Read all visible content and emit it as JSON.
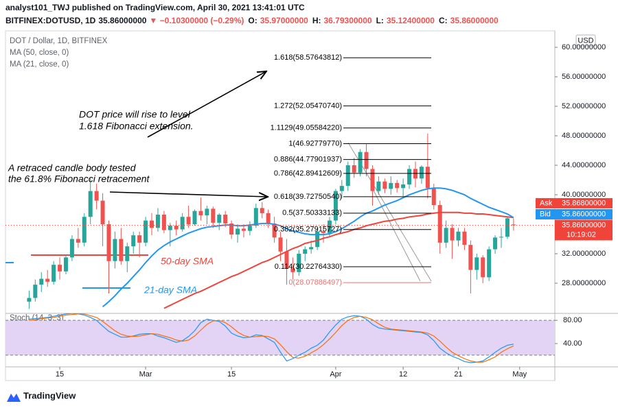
{
  "header": {
    "title": "analyst101_TWJ published on TradingView.com, April 30, 2021 13:41:01 UTC",
    "quote": [
      {
        "text": "BITFINEX:DOTUSD, 1D",
        "color": "#131722"
      },
      {
        "text": "35.86000000",
        "color": "#131722"
      },
      {
        "text": "▼ −0.10300000 (−0.29%)",
        "color": "#ef5350"
      },
      {
        "text": "O:",
        "color": "#131722"
      },
      {
        "text": "35.97000000",
        "color": "#ef5350"
      },
      {
        "text": "H:",
        "color": "#131722"
      },
      {
        "text": "36.79300000",
        "color": "#ef5350"
      },
      {
        "text": "L:",
        "color": "#131722"
      },
      {
        "text": "35.12400000",
        "color": "#ef5350"
      },
      {
        "text": "C:",
        "color": "#131722"
      },
      {
        "text": "35.86000000",
        "color": "#ef5350"
      }
    ]
  },
  "footer": "TradingView",
  "chart_data": [
    {
      "type": "candlestick",
      "title": "DOT / Dollar, 1D, BITFINEX",
      "axis_unit": "USD",
      "up_color": "#26a69a",
      "down_color": "#ef5350",
      "categories": [
        null,
        null,
        null,
        null,
        null,
        "15",
        null,
        null,
        null,
        null,
        null,
        null,
        null,
        null,
        null,
        null,
        null,
        null,
        null,
        "Mar",
        null,
        null,
        null,
        null,
        null,
        null,
        null,
        null,
        null,
        null,
        null,
        null,
        null,
        "15",
        null,
        null,
        null,
        null,
        null,
        null,
        null,
        null,
        null,
        null,
        null,
        null,
        null,
        null,
        null,
        null,
        "Apr",
        null,
        null,
        null,
        null,
        null,
        null,
        null,
        null,
        null,
        null,
        "12",
        null,
        null,
        null,
        null,
        null,
        null,
        null,
        null,
        "21",
        null,
        null,
        null,
        null,
        null,
        null,
        null,
        null,
        null,
        "May"
      ],
      "open": [
        25.5,
        26,
        27.8,
        28.6,
        28.2,
        30.5,
        29.6,
        31.5,
        34,
        33.5,
        37,
        40.5,
        39.2,
        36,
        31,
        34,
        31,
        33,
        34.5,
        33.5,
        36.5,
        35.5,
        37.3,
        35.2,
        35.8,
        35.3,
        37,
        36,
        37.8,
        37.2,
        38.1,
        36.2,
        37.3,
        36.1,
        34.6,
        35.4,
        35.1,
        35.8,
        38.2,
        37.5,
        36.1,
        34.2,
        32.3,
        30,
        29.5,
        32,
        32.6,
        32.9,
        35,
        34.8,
        36.5,
        40.5,
        41.2,
        44,
        43,
        45.8,
        43.5,
        40.5,
        41.8,
        40.8,
        41.6,
        40.9,
        41.4,
        43.5,
        42.2,
        43.8,
        40.9,
        38.6,
        33.5,
        35.5,
        33.8,
        35,
        33.2,
        29.8,
        31.5,
        28.8,
        32.6,
        34.2,
        34.3,
        35.97,
        null
      ],
      "high": [
        27,
        28.5,
        29.5,
        29.8,
        31,
        31.5,
        31.8,
        34.5,
        35.5,
        37.5,
        42.3,
        41.5,
        40.2,
        36.5,
        35,
        35.5,
        33.5,
        35,
        35,
        37,
        37.5,
        38.2,
        37.8,
        36.2,
        36.5,
        37.5,
        38.5,
        38,
        39.6,
        38.5,
        38.4,
        37.5,
        37.8,
        36.5,
        36,
        36,
        36.4,
        38.8,
        39,
        38,
        37,
        35,
        34,
        31.5,
        32.5,
        33,
        33.8,
        35.5,
        36,
        37,
        40.8,
        42,
        44.5,
        45,
        46.2,
        46.9,
        44,
        42.5,
        42.2,
        42.5,
        42,
        42.2,
        44,
        44.5,
        44,
        48.3,
        41.5,
        39.2,
        36.5,
        36,
        35.5,
        35.5,
        33.8,
        32,
        31.8,
        33,
        34.5,
        35.5,
        37,
        36.793,
        null
      ],
      "low": [
        24.5,
        25.5,
        26.8,
        27.5,
        27.8,
        28.5,
        29.2,
        31,
        32.8,
        33,
        36,
        38,
        33,
        26.6,
        30,
        30.5,
        29.5,
        32,
        31.5,
        33,
        34.5,
        35,
        34.8,
        33,
        34.5,
        35,
        35.5,
        35.8,
        36.5,
        36,
        35.5,
        35.2,
        35.6,
        34,
        33.5,
        34.2,
        34.5,
        35.5,
        36.8,
        35.5,
        33.5,
        31,
        27.8,
        28.5,
        29,
        31,
        32,
        32.5,
        33.5,
        34.2,
        36,
        39.5,
        40.5,
        42.3,
        42.5,
        42.5,
        38.5,
        40,
        40.2,
        40,
        40.3,
        39.8,
        40.8,
        41,
        41.5,
        39.5,
        38,
        32,
        32.8,
        31.3,
        33,
        32.5,
        26.6,
        28.5,
        28,
        28.3,
        32,
        32.8,
        34,
        35.124,
        null
      ],
      "close": [
        26,
        27.8,
        28.6,
        28.2,
        30.5,
        29.6,
        31.5,
        34,
        33.5,
        37,
        40.5,
        39.2,
        36,
        31,
        34,
        31,
        33,
        34.5,
        33.5,
        36.5,
        35.5,
        37.3,
        35.2,
        35.8,
        35.3,
        37,
        36,
        37.8,
        37.2,
        38.1,
        36.2,
        37.3,
        36.1,
        34.6,
        35.4,
        35.1,
        35.8,
        38.2,
        37.5,
        36.1,
        34.2,
        32.3,
        30,
        29.5,
        32,
        32.6,
        32.9,
        35,
        34.8,
        36.5,
        40.5,
        41.2,
        44,
        43,
        45.8,
        43.5,
        40.5,
        41.8,
        40.8,
        41.6,
        40.9,
        41.4,
        43.5,
        42.2,
        43.8,
        40.9,
        38.6,
        33.5,
        35.5,
        33.8,
        35,
        33.2,
        29.8,
        31.5,
        28.8,
        32.6,
        34.2,
        34.3,
        36.8,
        35.86,
        null
      ],
      "series": [
        {
          "name": "MA (50, close, 0)",
          "color": "#f0433a",
          "values": [
            null,
            null,
            null,
            null,
            null,
            null,
            null,
            null,
            null,
            null,
            null,
            null,
            null,
            null,
            null,
            null,
            null,
            null,
            null,
            null,
            null,
            null,
            24.6,
            25,
            25.4,
            25.8,
            26.2,
            26.6,
            26.9,
            27.3,
            27.7,
            28.1,
            28.5,
            28.9,
            29.2,
            29.6,
            30,
            30.4,
            30.8,
            31.1,
            31.5,
            31.9,
            32.3,
            32.7,
            33,
            33.4,
            33.6,
            33.8,
            34.1,
            34.3,
            34.6,
            34.8,
            35,
            35.3,
            35.5,
            35.8,
            36,
            36.2,
            36.4,
            36.5,
            36.7,
            36.8,
            37,
            37.1,
            37.2,
            37.4,
            37.5,
            37.6,
            37.6,
            37.6,
            37.6,
            37.5,
            37.5,
            37.4,
            37.4,
            37.3,
            37.2,
            37.1,
            37,
            36.9,
            null
          ]
        },
        {
          "name": "MA (21, close, 0)",
          "color": "#2196f3",
          "values": [
            null,
            null,
            null,
            null,
            null,
            null,
            null,
            null,
            null,
            null,
            null,
            null,
            24.8,
            25.5,
            26.3,
            27.2,
            28,
            28.9,
            29.8,
            30.8,
            31.7,
            32.5,
            33.1,
            33.6,
            34,
            34.4,
            34.8,
            35.1,
            35.4,
            35.6,
            35.7,
            35.8,
            35.9,
            35.9,
            35.8,
            35.8,
            35.9,
            36,
            36.1,
            36.1,
            36,
            35.8,
            35.4,
            35.1,
            34.9,
            34.7,
            34.6,
            34.6,
            34.6,
            34.7,
            35,
            35.4,
            35.9,
            36.4,
            37,
            37.5,
            37.8,
            38.2,
            38.6,
            38.9,
            39.2,
            39.6,
            40,
            40.3,
            40.6,
            40.8,
            40.9,
            40.9,
            40.8,
            40.6,
            40.3,
            40,
            39.5,
            39.1,
            38.7,
            38.3,
            38,
            37.7,
            37.4,
            36.9,
            null
          ]
        }
      ],
      "ylim": [
        24,
        62.2
      ],
      "yticks": [
        {
          "value": 28,
          "label": "28.00000000"
        },
        {
          "value": 32,
          "label": "32.00000000"
        },
        {
          "value": 36,
          "label": "36.00000000"
        },
        {
          "value": 40,
          "label": "40.00000000"
        },
        {
          "value": 44,
          "label": "44.00000000"
        },
        {
          "value": 48,
          "label": "48.00000000"
        },
        {
          "value": 52,
          "label": "52.00000000"
        },
        {
          "value": 56,
          "label": "56.00000000"
        },
        {
          "value": 60,
          "label": "60.00000000"
        }
      ],
      "fibonacci": [
        {
          "value": 58.57643812,
          "label": "1.618(58.57643812)",
          "color": "#000000"
        },
        {
          "value": 52.0547074,
          "label": "1.272(52.05470740)",
          "color": "#000000"
        },
        {
          "value": 49.0558422,
          "label": "1.1129(49.05584220)",
          "color": "#000000"
        },
        {
          "value": 46.9277977,
          "label": "1(46.92779770)",
          "color": "#000000"
        },
        {
          "value": 44.77901937,
          "label": "0.886(44.77901937)",
          "color": "#000000"
        },
        {
          "value": 42.89412609,
          "label": "0.786(42.89412609)",
          "color": "#000000"
        },
        {
          "value": 39.7275054,
          "label": "0.618(39.72750540)",
          "color": "#000000"
        },
        {
          "value": 37.50333133,
          "label": "0.5(37.50333133)",
          "color": "#000000"
        },
        {
          "value": 35.27915727,
          "label": "0.382(35.27915727)",
          "color": "#000000"
        },
        {
          "value": 30.2276433,
          "label": "0.114(30.22764330)",
          "color": "#000000"
        },
        {
          "value": 28.07886497,
          "label": "0(28.07886497)",
          "color": "#e57373"
        }
      ],
      "price_tags": [
        {
          "name": "Ask",
          "value": 35.868,
          "label": "35.86800000",
          "color": "#f0433a"
        },
        {
          "name": "Bid",
          "value": 35.86,
          "label": "35.86000000",
          "color": "#2196f3"
        }
      ],
      "last_price": {
        "value": 35.86,
        "label": "35.86000000",
        "countdown": "10:19:02",
        "color": "#f0433a"
      },
      "annotations": [
        {
          "lines": [
            "DOT price will rise to level",
            "1.618 Fibonacci extension."
          ],
          "color": "#000000"
        },
        {
          "lines": [
            "A retraced candle body tested",
            "the 61.8% Fibonacci retracement"
          ],
          "color": "#000000"
        },
        {
          "lines": [
            "50-day SMA"
          ],
          "color": "#f0433a"
        },
        {
          "lines": [
            "21-day SMA"
          ],
          "color": "#2196f3"
        }
      ]
    },
    {
      "type": "line",
      "title": "Stoch (14, 3, 3)",
      "band": [
        20,
        80
      ],
      "band_color": "#e3d3f5",
      "series": [
        {
          "color": "#2196f3",
          "values": [
            82,
            83,
            84,
            85,
            87,
            89,
            91,
            92,
            91,
            89,
            85,
            80,
            70,
            61,
            56,
            51,
            51,
            53,
            56,
            57,
            57,
            53,
            50,
            46,
            42,
            45,
            52,
            62,
            76,
            82,
            80,
            78,
            70,
            58,
            53,
            50,
            51,
            55,
            54,
            48,
            42,
            25,
            10,
            14,
            20,
            25,
            32,
            37,
            46,
            60,
            72,
            82,
            86,
            88,
            87,
            82,
            73,
            67,
            65,
            64,
            63,
            62,
            61,
            60,
            59,
            55,
            45,
            32,
            24,
            18,
            14,
            9,
            7,
            8,
            10,
            17,
            25,
            32,
            37,
            39,
            null
          ]
        },
        {
          "color": "#ff6d00",
          "values": [
            80,
            81,
            83,
            84,
            85,
            87,
            89,
            90,
            91,
            91,
            88,
            85,
            78,
            70,
            62,
            56,
            53,
            52,
            53,
            55,
            57,
            56,
            53,
            50,
            46,
            44,
            46,
            53,
            63,
            73,
            79,
            80,
            76,
            69,
            60,
            54,
            51,
            52,
            53,
            52,
            48,
            38,
            26,
            16,
            15,
            18,
            24,
            30,
            38,
            48,
            59,
            71,
            80,
            85,
            87,
            85,
            81,
            74,
            68,
            65,
            64,
            63,
            62,
            61,
            60,
            58,
            53,
            44,
            34,
            25,
            19,
            14,
            10,
            8,
            8,
            12,
            17,
            25,
            31,
            36,
            null
          ]
        }
      ],
      "ylim": [
        1,
        92
      ],
      "yticks": [
        {
          "value": 40,
          "label": "40.00"
        },
        {
          "value": 80,
          "label": "80.00"
        }
      ]
    }
  ]
}
